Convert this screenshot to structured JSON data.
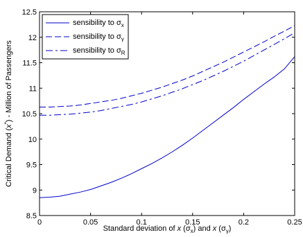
{
  "chart_data": {
    "type": "line",
    "xlabel": {
      "prefix": "Standard deviation of ",
      "x1": "x",
      "open1": " (σ",
      "sub1": "x",
      "mid": ") and ",
      "x2": "x",
      "open2": " (σ",
      "sub2": "γ",
      "close": ")"
    },
    "ylabel": {
      "prefix": "Critical Demand (",
      "x": "x",
      "sup": "*",
      "suffix": ") - Million of Passengers"
    },
    "xlim": [
      0,
      0.25
    ],
    "ylim": [
      8.5,
      12.5
    ],
    "x_ticks": [
      "0",
      "0.05",
      "0.1",
      "0.15",
      "0.2",
      "0.25"
    ],
    "y_ticks": [
      "8.5",
      "9",
      "9.5",
      "10",
      "10.5",
      "11",
      "11.5",
      "12",
      "12.5"
    ],
    "line_color": "#0000cc",
    "legend_position": "top-left",
    "series": [
      {
        "label_text": "sensibility to σ",
        "label_sub": "x",
        "style": "solid",
        "x": [
          0,
          0.01,
          0.02,
          0.03,
          0.04,
          0.05,
          0.06,
          0.07,
          0.08,
          0.09,
          0.1,
          0.11,
          0.12,
          0.13,
          0.14,
          0.15,
          0.16,
          0.17,
          0.18,
          0.19,
          0.2,
          0.21,
          0.22,
          0.23,
          0.24,
          0.25
        ],
        "y": [
          8.85,
          8.86,
          8.88,
          8.92,
          8.96,
          9.01,
          9.08,
          9.15,
          9.23,
          9.32,
          9.42,
          9.52,
          9.63,
          9.75,
          9.88,
          10.02,
          10.17,
          10.32,
          10.47,
          10.62,
          10.78,
          10.93,
          11.08,
          11.22,
          11.38,
          11.62
        ]
      },
      {
        "label_text": "sensibility to σ",
        "label_sub": "γ",
        "style": "dashed",
        "x": [
          0,
          0.01,
          0.02,
          0.03,
          0.04,
          0.05,
          0.06,
          0.07,
          0.08,
          0.09,
          0.1,
          0.11,
          0.12,
          0.13,
          0.14,
          0.15,
          0.16,
          0.17,
          0.18,
          0.19,
          0.2,
          0.21,
          0.22,
          0.23,
          0.24,
          0.25
        ],
        "y": [
          10.63,
          10.63,
          10.64,
          10.65,
          10.67,
          10.7,
          10.73,
          10.76,
          10.8,
          10.85,
          10.9,
          10.96,
          11.02,
          11.09,
          11.16,
          11.24,
          11.33,
          11.42,
          11.51,
          11.61,
          11.71,
          11.81,
          11.91,
          12.02,
          12.12,
          12.23
        ]
      },
      {
        "label_text": "sensibility to σ",
        "label_sub": "R",
        "style": "dashdot",
        "x": [
          0,
          0.01,
          0.02,
          0.03,
          0.04,
          0.05,
          0.06,
          0.07,
          0.08,
          0.09,
          0.1,
          0.11,
          0.12,
          0.13,
          0.14,
          0.15,
          0.16,
          0.17,
          0.18,
          0.19,
          0.2,
          0.21,
          0.22,
          0.23,
          0.24,
          0.25
        ],
        "y": [
          10.47,
          10.47,
          10.48,
          10.49,
          10.51,
          10.53,
          10.56,
          10.6,
          10.64,
          10.68,
          10.73,
          10.79,
          10.85,
          10.92,
          10.99,
          11.07,
          11.15,
          11.24,
          11.33,
          11.43,
          11.53,
          11.64,
          11.75,
          11.86,
          11.97,
          12.09
        ]
      }
    ]
  }
}
